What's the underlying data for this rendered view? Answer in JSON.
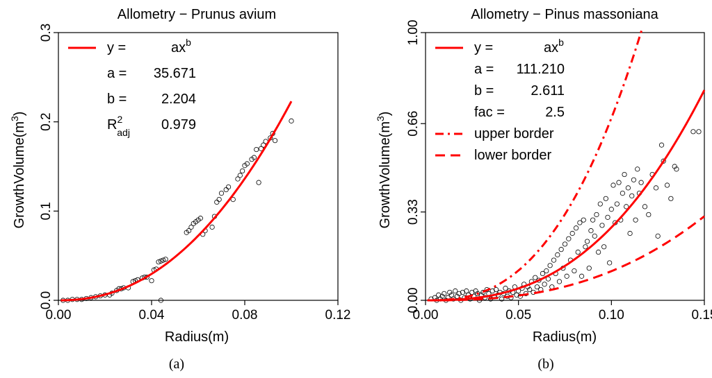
{
  "chart_data": [
    {
      "type": "scatter",
      "panel_label": "(a)",
      "title": "Allometry − Prunus avium",
      "xlabel": "Radius(m)",
      "ylabel_base": "GrowthVolume(m",
      "ylabel_sup": "3",
      "ylabel_tail": ")",
      "xlim": [
        0,
        0.12
      ],
      "ylim": [
        0,
        0.3
      ],
      "xticks": [
        0.0,
        0.04,
        0.08,
        0.12
      ],
      "xtick_labels": [
        "0.00",
        "0.04",
        "0.08",
        "0.12"
      ],
      "yticks": [
        0.0,
        0.1,
        0.2,
        0.3
      ],
      "ytick_labels": [
        "0.0",
        "0.1",
        "0.2",
        "0.3"
      ],
      "legend": {
        "position": "top-left",
        "formula_lhs": "y =",
        "formula_rhs": "ax",
        "formula_sup": "b",
        "rows": [
          {
            "label": "a =",
            "value": "35.671"
          },
          {
            "label": "b =",
            "value": "2.204"
          }
        ],
        "r2_label": "R",
        "r2_sup": "2",
        "r2_sub": "adj",
        "r2_value": "0.979"
      },
      "fit": {
        "a": 35.671,
        "b": 2.204,
        "x_range": [
          0.001,
          0.1
        ],
        "color": "#ff0000"
      },
      "points": [
        [
          0.002,
          0.0
        ],
        [
          0.004,
          0.0
        ],
        [
          0.006,
          0.001
        ],
        [
          0.008,
          0.001
        ],
        [
          0.01,
          0.001
        ],
        [
          0.012,
          0.002
        ],
        [
          0.014,
          0.003
        ],
        [
          0.016,
          0.004
        ],
        [
          0.018,
          0.005
        ],
        [
          0.02,
          0.006
        ],
        [
          0.022,
          0.006
        ],
        [
          0.023,
          0.008
        ],
        [
          0.025,
          0.011
        ],
        [
          0.026,
          0.013
        ],
        [
          0.027,
          0.013
        ],
        [
          0.028,
          0.014
        ],
        [
          0.03,
          0.014
        ],
        [
          0.032,
          0.021
        ],
        [
          0.033,
          0.022
        ],
        [
          0.034,
          0.023
        ],
        [
          0.036,
          0.025
        ],
        [
          0.037,
          0.026
        ],
        [
          0.038,
          0.026
        ],
        [
          0.04,
          0.022
        ],
        [
          0.041,
          0.034
        ],
        [
          0.042,
          0.035
        ],
        [
          0.043,
          0.043
        ],
        [
          0.044,
          0.044
        ],
        [
          0.045,
          0.045
        ],
        [
          0.046,
          0.046
        ],
        [
          0.044,
          0.0
        ],
        [
          0.055,
          0.076
        ],
        [
          0.056,
          0.078
        ],
        [
          0.057,
          0.082
        ],
        [
          0.058,
          0.086
        ],
        [
          0.059,
          0.088
        ],
        [
          0.06,
          0.09
        ],
        [
          0.061,
          0.092
        ],
        [
          0.062,
          0.074
        ],
        [
          0.063,
          0.078
        ],
        [
          0.066,
          0.082
        ],
        [
          0.067,
          0.094
        ],
        [
          0.068,
          0.11
        ],
        [
          0.069,
          0.113
        ],
        [
          0.07,
          0.12
        ],
        [
          0.072,
          0.124
        ],
        [
          0.073,
          0.127
        ],
        [
          0.075,
          0.113
        ],
        [
          0.077,
          0.136
        ],
        [
          0.078,
          0.14
        ],
        [
          0.079,
          0.145
        ],
        [
          0.08,
          0.151
        ],
        [
          0.081,
          0.153
        ],
        [
          0.083,
          0.158
        ],
        [
          0.084,
          0.16
        ],
        [
          0.085,
          0.169
        ],
        [
          0.086,
          0.132
        ],
        [
          0.087,
          0.17
        ],
        [
          0.088,
          0.174
        ],
        [
          0.089,
          0.178
        ],
        [
          0.091,
          0.182
        ],
        [
          0.092,
          0.187
        ],
        [
          0.093,
          0.179
        ],
        [
          0.1,
          0.201
        ]
      ]
    },
    {
      "type": "scatter",
      "panel_label": "(b)",
      "title": "Allometry − Pinus massoniana",
      "xlabel": "Radius(m)",
      "ylabel_base": "GrowthVolume(m",
      "ylabel_sup": "3",
      "ylabel_tail": ")",
      "xlim": [
        0,
        0.15
      ],
      "ylim": [
        0,
        1.0
      ],
      "xticks": [
        0.0,
        0.05,
        0.1,
        0.15
      ],
      "xtick_labels": [
        "0.00",
        "0.05",
        "0.10",
        "0.15"
      ],
      "yticks": [
        0.0,
        0.33,
        0.66,
        1.0
      ],
      "ytick_labels": [
        "0.00",
        "0.33",
        "0.66",
        "1.00"
      ],
      "legend": {
        "position": "top-left",
        "formula_lhs": "y =",
        "formula_rhs": "ax",
        "formula_sup": "b",
        "rows": [
          {
            "label": "a =",
            "value": "111.210"
          },
          {
            "label": "b =",
            "value": "2.611"
          },
          {
            "label": "fac =",
            "value": "2.5"
          }
        ],
        "upper_label": "upper border",
        "lower_label": "lower border"
      },
      "fit": {
        "a": 111.21,
        "b": 2.611,
        "fac": 2.5,
        "x_range": [
          0.001,
          0.15
        ],
        "color": "#ff0000"
      },
      "points": [
        [
          0.003,
          0.005
        ],
        [
          0.005,
          0.01
        ],
        [
          0.006,
          0.0
        ],
        [
          0.007,
          0.02
        ],
        [
          0.008,
          0.005
        ],
        [
          0.009,
          0.015
        ],
        [
          0.01,
          0.025
        ],
        [
          0.011,
          0.0
        ],
        [
          0.012,
          0.01
        ],
        [
          0.013,
          0.03
        ],
        [
          0.014,
          0.02
        ],
        [
          0.015,
          0.005
        ],
        [
          0.016,
          0.035
        ],
        [
          0.017,
          0.015
        ],
        [
          0.018,
          0.025
        ],
        [
          0.019,
          0.0
        ],
        [
          0.02,
          0.03
        ],
        [
          0.021,
          0.01
        ],
        [
          0.022,
          0.035
        ],
        [
          0.023,
          0.02
        ],
        [
          0.024,
          0.005
        ],
        [
          0.025,
          0.03
        ],
        [
          0.026,
          0.015
        ],
        [
          0.027,
          0.035
        ],
        [
          0.028,
          0.025
        ],
        [
          0.029,
          0.0
        ],
        [
          0.03,
          0.02
        ],
        [
          0.031,
          0.03
        ],
        [
          0.032,
          0.01
        ],
        [
          0.033,
          0.04
        ],
        [
          0.034,
          0.025
        ],
        [
          0.035,
          0.005
        ],
        [
          0.036,
          0.035
        ],
        [
          0.037,
          0.015
        ],
        [
          0.038,
          0.04
        ],
        [
          0.039,
          0.02
        ],
        [
          0.04,
          0.03
        ],
        [
          0.041,
          0.005
        ],
        [
          0.042,
          0.025
        ],
        [
          0.043,
          0.045
        ],
        [
          0.044,
          0.015
        ],
        [
          0.045,
          0.035
        ],
        [
          0.046,
          0.01
        ],
        [
          0.047,
          0.03
        ],
        [
          0.048,
          0.05
        ],
        [
          0.049,
          0.02
        ],
        [
          0.05,
          0.035
        ],
        [
          0.051,
          0.015
        ],
        [
          0.052,
          0.045
        ],
        [
          0.053,
          0.06
        ],
        [
          0.054,
          0.025
        ],
        [
          0.055,
          0.05
        ],
        [
          0.056,
          0.04
        ],
        [
          0.057,
          0.07
        ],
        [
          0.058,
          0.03
        ],
        [
          0.059,
          0.085
        ],
        [
          0.06,
          0.05
        ],
        [
          0.061,
          0.075
        ],
        [
          0.062,
          0.04
        ],
        [
          0.063,
          0.1
        ],
        [
          0.064,
          0.06
        ],
        [
          0.065,
          0.11
        ],
        [
          0.066,
          0.08
        ],
        [
          0.067,
          0.13
        ],
        [
          0.068,
          0.05
        ],
        [
          0.069,
          0.15
        ],
        [
          0.07,
          0.1
        ],
        [
          0.071,
          0.17
        ],
        [
          0.072,
          0.07
        ],
        [
          0.073,
          0.19
        ],
        [
          0.074,
          0.12
        ],
        [
          0.075,
          0.21
        ],
        [
          0.076,
          0.09
        ],
        [
          0.077,
          0.23
        ],
        [
          0.078,
          0.15
        ],
        [
          0.079,
          0.25
        ],
        [
          0.08,
          0.11
        ],
        [
          0.081,
          0.27
        ],
        [
          0.082,
          0.18
        ],
        [
          0.083,
          0.29
        ],
        [
          0.084,
          0.09
        ],
        [
          0.085,
          0.3
        ],
        [
          0.086,
          0.2
        ],
        [
          0.087,
          0.22
        ],
        [
          0.088,
          0.12
        ],
        [
          0.089,
          0.26
        ],
        [
          0.09,
          0.3
        ],
        [
          0.091,
          0.24
        ],
        [
          0.092,
          0.32
        ],
        [
          0.093,
          0.18
        ],
        [
          0.094,
          0.36
        ],
        [
          0.095,
          0.28
        ],
        [
          0.096,
          0.2
        ],
        [
          0.097,
          0.38
        ],
        [
          0.098,
          0.31
        ],
        [
          0.099,
          0.14
        ],
        [
          0.1,
          0.34
        ],
        [
          0.101,
          0.43
        ],
        [
          0.102,
          0.29
        ],
        [
          0.103,
          0.36
        ],
        [
          0.104,
          0.44
        ],
        [
          0.105,
          0.3
        ],
        [
          0.106,
          0.4
        ],
        [
          0.107,
          0.47
        ],
        [
          0.108,
          0.35
        ],
        [
          0.109,
          0.42
        ],
        [
          0.11,
          0.25
        ],
        [
          0.111,
          0.39
        ],
        [
          0.112,
          0.45
        ],
        [
          0.113,
          0.3
        ],
        [
          0.114,
          0.49
        ],
        [
          0.115,
          0.4
        ],
        [
          0.116,
          0.44
        ],
        [
          0.118,
          0.35
        ],
        [
          0.12,
          0.32
        ],
        [
          0.122,
          0.47
        ],
        [
          0.124,
          0.42
        ],
        [
          0.125,
          0.24
        ],
        [
          0.127,
          0.58
        ],
        [
          0.128,
          0.52
        ],
        [
          0.13,
          0.43
        ],
        [
          0.132,
          0.38
        ],
        [
          0.134,
          0.5
        ],
        [
          0.135,
          0.49
        ],
        [
          0.144,
          0.63
        ],
        [
          0.147,
          0.63
        ]
      ]
    }
  ]
}
